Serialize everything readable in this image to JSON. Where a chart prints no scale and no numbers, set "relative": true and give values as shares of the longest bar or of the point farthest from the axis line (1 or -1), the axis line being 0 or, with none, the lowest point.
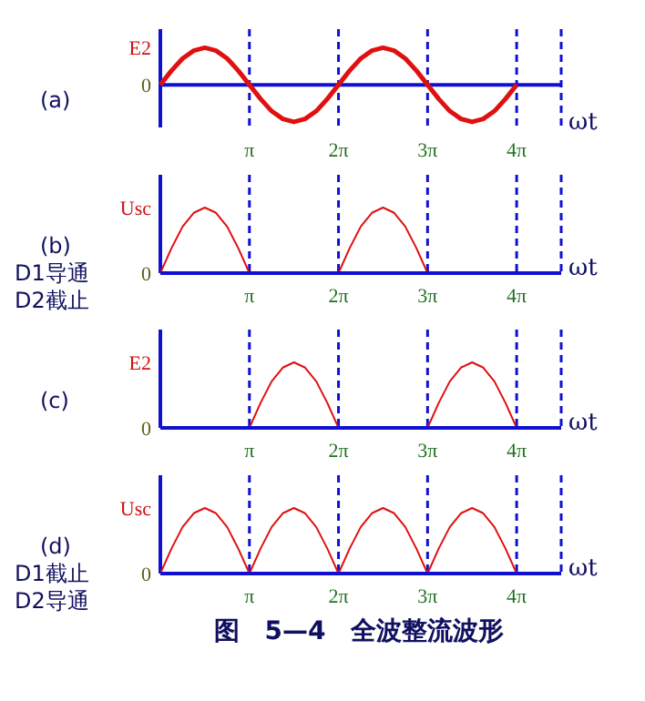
{
  "chart_data": [
    {
      "type": "line",
      "relative": true,
      "xlabel": "ωt",
      "annotations": [
        "E2",
        "0",
        "(a)"
      ],
      "categories": [
        null,
        null,
        null,
        null,
        null,
        null,
        null,
        null,
        "π",
        null,
        null,
        null,
        null,
        null,
        null,
        null,
        "2π",
        null,
        null,
        null,
        null,
        null,
        null,
        null,
        "3π",
        null,
        null,
        null,
        null,
        null,
        null,
        null,
        "4π",
        null,
        null,
        null,
        null
      ],
      "series": [
        {
          "color": "#e01010",
          "values": [
            0,
            0.38,
            0.71,
            0.92,
            1,
            0.92,
            0.71,
            0.38,
            0,
            -0.38,
            -0.71,
            -0.92,
            -1,
            -0.92,
            -0.71,
            -0.38,
            0,
            0.38,
            0.71,
            0.92,
            1,
            0.92,
            0.71,
            0.38,
            0,
            -0.38,
            -0.71,
            -0.92,
            -1,
            -0.92,
            -0.71,
            -0.38,
            0,
            null,
            null,
            null,
            null
          ]
        }
      ],
      "grid": "x",
      "ref_lines": [
        {
          "axis": "y",
          "value": 0,
          "color": "#1010d0",
          "line_style": "solid"
        }
      ]
    },
    {
      "type": "line",
      "relative": true,
      "xlabel": "ωt",
      "annotations": [
        "Usc",
        "0",
        "(b)",
        "D1导通",
        "D2截止"
      ],
      "categories": [
        null,
        null,
        null,
        null,
        null,
        null,
        null,
        null,
        "π",
        null,
        null,
        null,
        null,
        null,
        null,
        null,
        "2π",
        null,
        null,
        null,
        null,
        null,
        null,
        null,
        "3π",
        null,
        null,
        null,
        null,
        null,
        null,
        null,
        "4π",
        null,
        null,
        null,
        null
      ],
      "series": [
        {
          "color": "#e01010",
          "values": [
            0,
            0.38,
            0.71,
            0.92,
            1,
            0.92,
            0.71,
            0.38,
            0,
            null,
            null,
            null,
            null,
            null,
            null,
            null,
            0,
            0.38,
            0.71,
            0.92,
            1,
            0.92,
            0.71,
            0.38,
            0,
            null,
            null,
            null,
            null,
            null,
            null,
            null,
            null,
            null,
            null,
            null,
            null
          ]
        }
      ],
      "grid": "x"
    },
    {
      "type": "line",
      "relative": true,
      "xlabel": "ωt",
      "annotations": [
        "E2",
        "0",
        "(c)"
      ],
      "categories": [
        null,
        null,
        null,
        null,
        null,
        null,
        null,
        null,
        "π",
        null,
        null,
        null,
        null,
        null,
        null,
        null,
        "2π",
        null,
        null,
        null,
        null,
        null,
        null,
        null,
        "3π",
        null,
        null,
        null,
        null,
        null,
        null,
        null,
        "4π",
        null,
        null,
        null,
        null
      ],
      "series": [
        {
          "color": "#e01010",
          "values": [
            null,
            null,
            null,
            null,
            null,
            null,
            null,
            null,
            0,
            0.38,
            0.71,
            0.92,
            1,
            0.92,
            0.71,
            0.38,
            0,
            null,
            null,
            null,
            null,
            null,
            null,
            null,
            0,
            0.38,
            0.71,
            0.92,
            1,
            0.92,
            0.71,
            0.38,
            0,
            null,
            null,
            null,
            null
          ]
        }
      ],
      "grid": "x"
    },
    {
      "type": "line",
      "relative": true,
      "title": "图　5—4　全波整流波形",
      "xlabel": "ωt",
      "annotations": [
        "Usc",
        "0",
        "(d)",
        "D1截止",
        "D2导通"
      ],
      "categories": [
        null,
        null,
        null,
        null,
        null,
        null,
        null,
        null,
        "π",
        null,
        null,
        null,
        null,
        null,
        null,
        null,
        "2π",
        null,
        null,
        null,
        null,
        null,
        null,
        null,
        "3π",
        null,
        null,
        null,
        null,
        null,
        null,
        null,
        "4π",
        null,
        null,
        null,
        null
      ],
      "series": [
        {
          "color": "#e01010",
          "values": [
            0,
            0.38,
            0.71,
            0.92,
            1,
            0.92,
            0.71,
            0.38,
            0,
            0.38,
            0.71,
            0.92,
            1,
            0.92,
            0.71,
            0.38,
            0,
            0.38,
            0.71,
            0.92,
            1,
            0.92,
            0.71,
            0.38,
            0,
            0.38,
            0.71,
            0.92,
            1,
            0.92,
            0.71,
            0.38,
            0,
            null,
            null,
            null,
            null
          ]
        }
      ],
      "grid": "x"
    }
  ]
}
